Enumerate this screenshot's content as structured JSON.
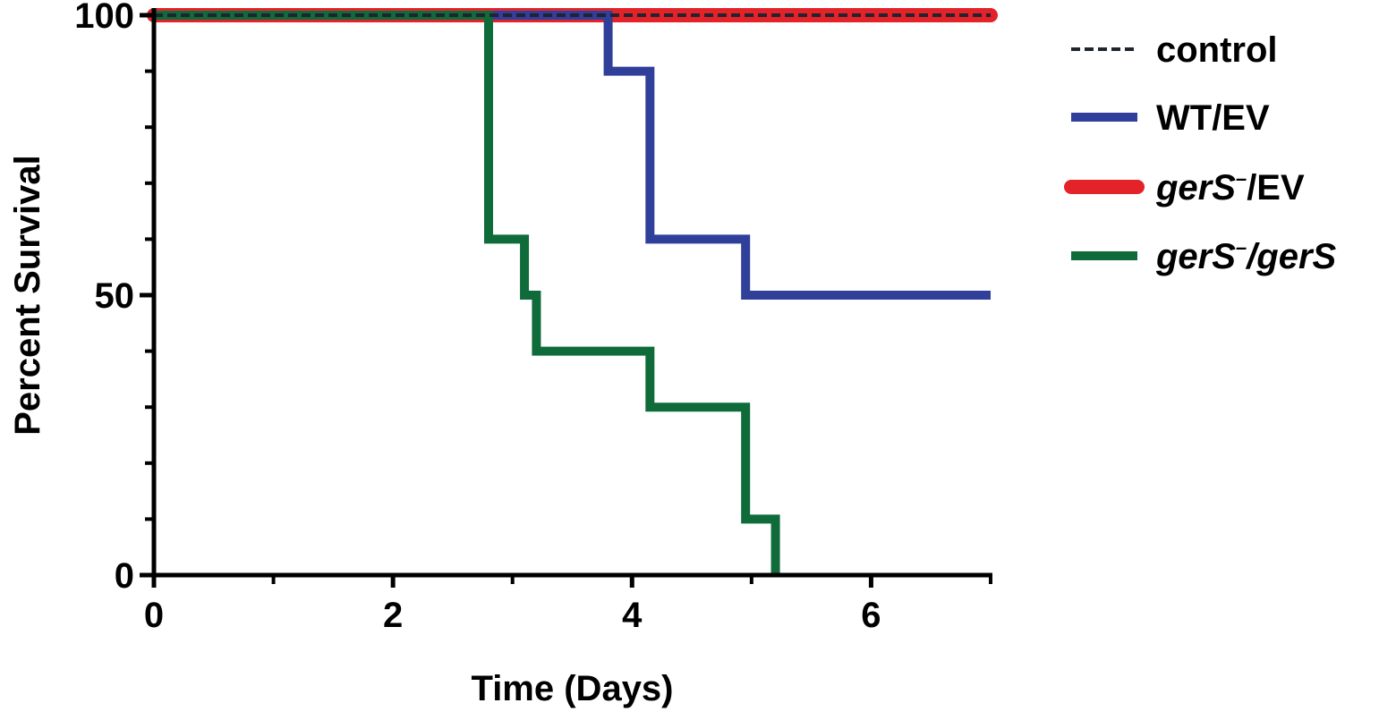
{
  "chart_data": {
    "type": "line",
    "step": true,
    "xlabel": "Time (Days)",
    "ylabel": "Percent Survival",
    "xlim": [
      0,
      7
    ],
    "ylim": [
      0,
      100
    ],
    "x_ticks": [
      0,
      2,
      4,
      6
    ],
    "x_minor_ticks": [
      1,
      3,
      5,
      7
    ],
    "y_ticks": [
      0,
      50,
      100
    ],
    "y_minor_ticks": [
      10,
      20,
      30,
      40,
      60,
      70,
      80,
      90
    ],
    "grid": false,
    "legend_position": "right",
    "series": [
      {
        "name": "control",
        "legend_parts": [
          {
            "text": "control",
            "style": "normal"
          }
        ],
        "color": "#1f2430",
        "dash": true,
        "x": [
          0,
          7
        ],
        "y": [
          100,
          100
        ]
      },
      {
        "name": "WT/EV",
        "legend_parts": [
          {
            "text": "WT/EV",
            "style": "normal"
          }
        ],
        "color": "#2f3f9a",
        "dash": false,
        "x": [
          0,
          3.8,
          4.15,
          4.95,
          7
        ],
        "y": [
          100,
          90,
          60,
          50,
          50
        ]
      },
      {
        "name": "gerS–/EV",
        "legend_parts": [
          {
            "text": "gerS",
            "style": "italic"
          },
          {
            "text": "–",
            "style": "sup"
          },
          {
            "text": "/EV",
            "style": "normal"
          }
        ],
        "color": "#e32329",
        "dash": false,
        "x": [
          0,
          7
        ],
        "y": [
          100,
          100
        ]
      },
      {
        "name": "gerS–/gerS",
        "legend_parts": [
          {
            "text": "gerS",
            "style": "italic"
          },
          {
            "text": "–",
            "style": "sup"
          },
          {
            "text": "/gerS",
            "style": "italic"
          }
        ],
        "color": "#0f6b3a",
        "dash": false,
        "x": [
          0,
          2.8,
          3.1,
          3.2,
          4.15,
          4.95,
          5.2
        ],
        "y": [
          100,
          60,
          50,
          40,
          30,
          10,
          0
        ]
      }
    ]
  }
}
